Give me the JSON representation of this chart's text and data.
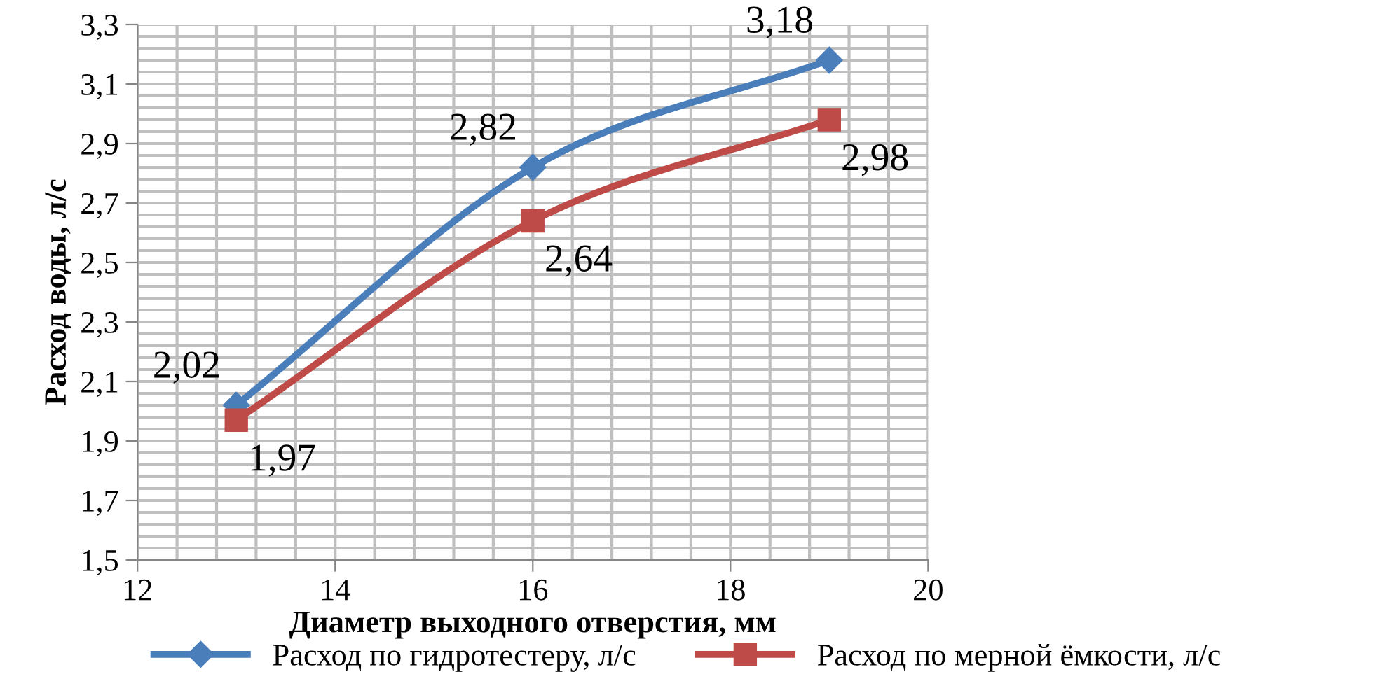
{
  "chart_data": {
    "type": "line",
    "xlabel": "Диаметр выходного отверстия, мм",
    "ylabel": "Расход воды, л/с",
    "x": [
      13,
      16,
      19
    ],
    "series": [
      {
        "name": "Расход по гидротестеру, л/с",
        "color": "#4a7ebb",
        "marker": "diamond",
        "values": [
          2.02,
          2.82,
          3.18
        ],
        "value_labels": [
          "2,02",
          "2,82",
          "3,18"
        ]
      },
      {
        "name": "Расход по мерной ёмкости, л/с",
        "color": "#be4b48",
        "marker": "square",
        "values": [
          1.97,
          2.64,
          2.98
        ],
        "value_labels": [
          "1,97",
          "2,64",
          "2,98"
        ]
      }
    ],
    "xlim": [
      12,
      20
    ],
    "xticks": [
      12,
      14,
      16,
      18,
      20
    ],
    "ylim": [
      1.5,
      3.3
    ],
    "yticks": [
      {
        "value": 1.5,
        "label": "1,5"
      },
      {
        "value": 1.7,
        "label": "1,7"
      },
      {
        "value": 1.9,
        "label": "1,9"
      },
      {
        "value": 2.1,
        "label": "2,1"
      },
      {
        "value": 2.3,
        "label": "2,3"
      },
      {
        "value": 2.5,
        "label": "2,5"
      },
      {
        "value": 2.7,
        "label": "2,7"
      },
      {
        "value": 2.9,
        "label": "2,9"
      },
      {
        "value": 3.1,
        "label": "3,1"
      },
      {
        "value": 3.3,
        "label": "3,3"
      }
    ],
    "grid": true,
    "legend": "bottom",
    "line_style": "solid"
  }
}
